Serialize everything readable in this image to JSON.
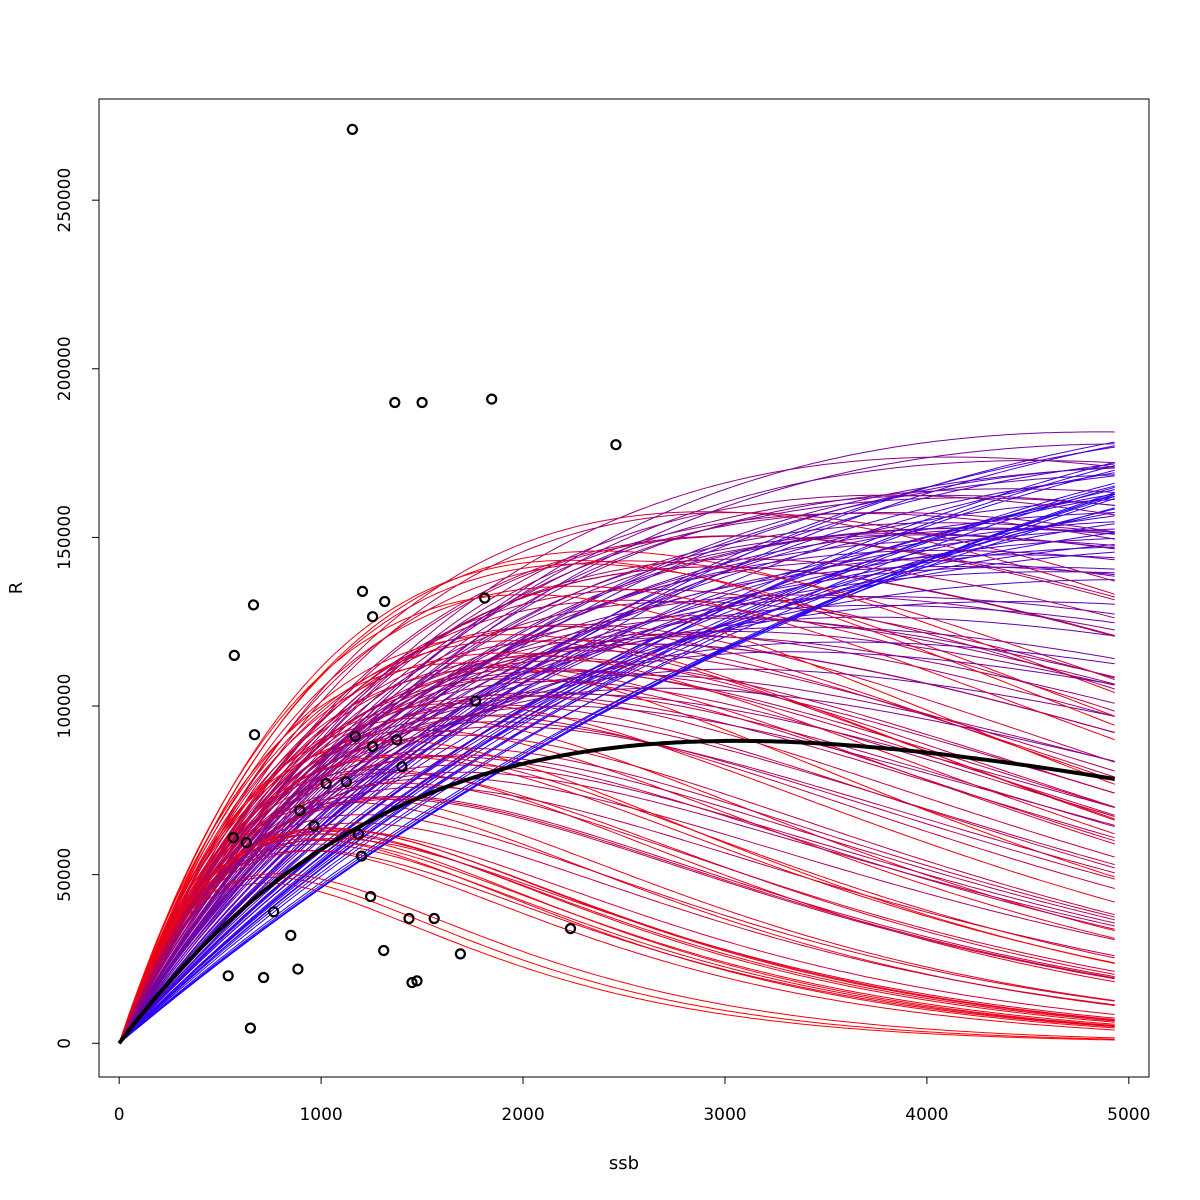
{
  "chart_data": {
    "type": "line",
    "xlabel": "ssb",
    "ylabel": "R",
    "xlim": [
      -100,
      5100
    ],
    "ylim": [
      -10000,
      280000
    ],
    "grid": false,
    "x_ticks": [
      {
        "value": 0,
        "label": "0"
      },
      {
        "value": 1000,
        "label": "1000"
      },
      {
        "value": 2000,
        "label": "2000"
      },
      {
        "value": 3000,
        "label": "3000"
      },
      {
        "value": 4000,
        "label": "4000"
      },
      {
        "value": 5000,
        "label": "5000"
      }
    ],
    "y_ticks": [
      {
        "value": 0,
        "label": "0"
      },
      {
        "value": 50000,
        "label": "50000"
      },
      {
        "value": 100000,
        "label": "100000"
      },
      {
        "value": 150000,
        "label": "150000"
      },
      {
        "value": 200000,
        "label": "200000"
      },
      {
        "value": 250000,
        "label": "250000"
      }
    ],
    "ssb_max": 4930,
    "central_curve": {
      "model": "ricker",
      "color": "#000000",
      "a": 79.7,
      "b": 0.000327
    },
    "sample_curves": {
      "model": "ricker",
      "count": 160,
      "color_low_a": "#2200ff",
      "color_high_a": "#ff0000",
      "a_range": [
        50,
        180
      ],
      "peak_ssb_range": [
        700,
        12000
      ],
      "seed": 7
    },
    "observations": [
      {
        "x": 1155,
        "y": 271000
      },
      {
        "x": 1365,
        "y": 190000
      },
      {
        "x": 1500,
        "y": 190000
      },
      {
        "x": 1845,
        "y": 191000
      },
      {
        "x": 2460,
        "y": 177500
      },
      {
        "x": 1205,
        "y": 134000
      },
      {
        "x": 1315,
        "y": 131000
      },
      {
        "x": 1810,
        "y": 132000
      },
      {
        "x": 665,
        "y": 130000
      },
      {
        "x": 1255,
        "y": 126500
      },
      {
        "x": 570,
        "y": 115000
      },
      {
        "x": 1765,
        "y": 101500
      },
      {
        "x": 670,
        "y": 91500
      },
      {
        "x": 1170,
        "y": 91000
      },
      {
        "x": 1375,
        "y": 90000
      },
      {
        "x": 1255,
        "y": 88000
      },
      {
        "x": 1400,
        "y": 82000
      },
      {
        "x": 1025,
        "y": 77000
      },
      {
        "x": 1125,
        "y": 77500
      },
      {
        "x": 895,
        "y": 69000
      },
      {
        "x": 965,
        "y": 64500
      },
      {
        "x": 565,
        "y": 61000
      },
      {
        "x": 630,
        "y": 59500
      },
      {
        "x": 1185,
        "y": 62000
      },
      {
        "x": 1200,
        "y": 55500
      },
      {
        "x": 1245,
        "y": 43500
      },
      {
        "x": 765,
        "y": 39000
      },
      {
        "x": 1435,
        "y": 37000
      },
      {
        "x": 1560,
        "y": 37000
      },
      {
        "x": 2235,
        "y": 34000
      },
      {
        "x": 850,
        "y": 32000
      },
      {
        "x": 1310,
        "y": 27500
      },
      {
        "x": 1690,
        "y": 26500
      },
      {
        "x": 885,
        "y": 22000
      },
      {
        "x": 540,
        "y": 20000
      },
      {
        "x": 715,
        "y": 19500
      },
      {
        "x": 1450,
        "y": 18000
      },
      {
        "x": 1475,
        "y": 18500
      },
      {
        "x": 650,
        "y": 4500
      }
    ]
  }
}
